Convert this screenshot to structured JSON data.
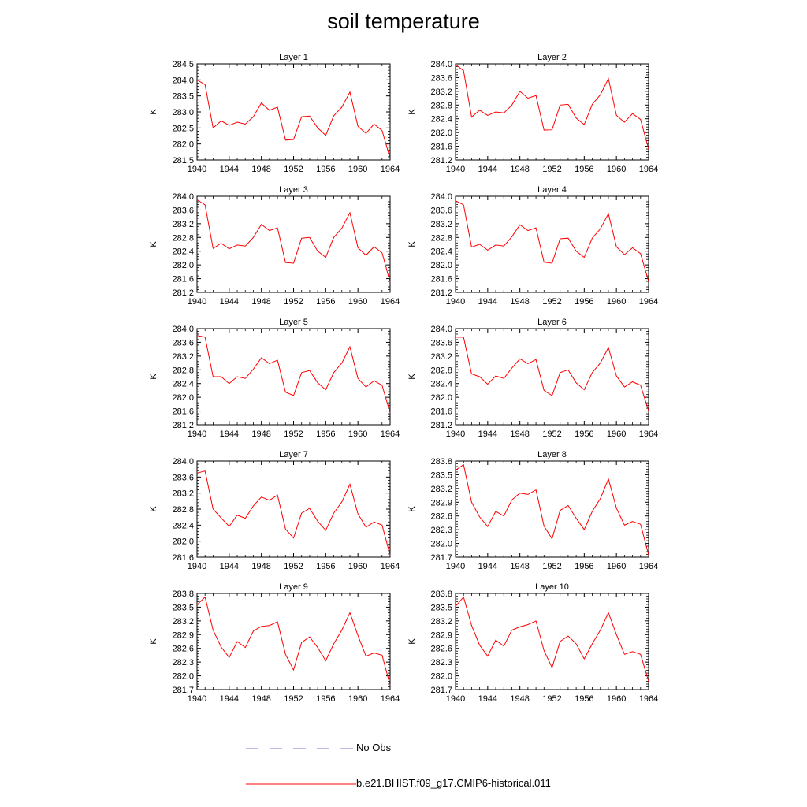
{
  "title": "soil temperature",
  "colors": {
    "model": "#ff0000",
    "obs": "#7777cc",
    "axis": "#000000"
  },
  "legend": {
    "obs_label": "No Obs",
    "model_label": "b.e21.BHIST.f09_g17.CMIP6-historical.011"
  },
  "chart_data": [
    {
      "type": "line",
      "title": "Layer 1",
      "ylabel": "K",
      "xlim": [
        1940,
        1964
      ],
      "ylim": [
        281.5,
        284.5
      ],
      "xticks": [
        1940,
        1944,
        1948,
        1952,
        1956,
        1960,
        1964
      ],
      "yticks": [
        281.5,
        282.0,
        282.5,
        283.0,
        283.5,
        284.0,
        284.5
      ],
      "ytick_labels": [
        "281.5",
        "282.0",
        "282.5",
        "283.0",
        "283.5",
        "284.0",
        "284.5"
      ],
      "x": [
        1940,
        1941,
        1942,
        1943,
        1944,
        1945,
        1946,
        1947,
        1948,
        1949,
        1950,
        1951,
        1952,
        1953,
        1954,
        1955,
        1956,
        1957,
        1958,
        1959,
        1960,
        1961,
        1962,
        1963,
        1964
      ],
      "series": [
        {
          "name": "b.e21.BHIST.f09_g17.CMIP6-historical.011",
          "values": [
            284.0,
            283.85,
            282.5,
            282.72,
            282.58,
            282.68,
            282.62,
            282.85,
            283.28,
            283.05,
            283.15,
            282.12,
            282.14,
            282.85,
            282.87,
            282.5,
            282.27,
            282.88,
            283.15,
            283.62,
            282.55,
            282.33,
            282.62,
            282.42,
            281.55
          ]
        }
      ]
    },
    {
      "type": "line",
      "title": "Layer 2",
      "ylabel": "K",
      "xlim": [
        1940,
        1964
      ],
      "ylim": [
        281.2,
        284.0
      ],
      "xticks": [
        1940,
        1944,
        1948,
        1952,
        1956,
        1960,
        1964
      ],
      "yticks": [
        281.2,
        281.6,
        282.0,
        282.4,
        282.8,
        283.2,
        283.6,
        284.0
      ],
      "ytick_labels": [
        "281.2",
        "281.6",
        "282.0",
        "282.4",
        "282.8",
        "283.2",
        "283.6",
        "284.0"
      ],
      "x": [
        1940,
        1941,
        1942,
        1943,
        1944,
        1945,
        1946,
        1947,
        1948,
        1949,
        1950,
        1951,
        1952,
        1953,
        1954,
        1955,
        1956,
        1957,
        1958,
        1959,
        1960,
        1961,
        1962,
        1963,
        1964
      ],
      "series": [
        {
          "name": "b.e21.BHIST.f09_g17.CMIP6-historical.011",
          "values": [
            283.98,
            283.8,
            282.45,
            282.65,
            282.5,
            282.6,
            282.57,
            282.8,
            283.2,
            283.0,
            283.08,
            282.07,
            282.08,
            282.8,
            282.82,
            282.42,
            282.23,
            282.82,
            283.1,
            283.57,
            282.5,
            282.3,
            282.55,
            282.38,
            281.52
          ]
        }
      ]
    },
    {
      "type": "line",
      "title": "Layer 3",
      "ylabel": "K",
      "xlim": [
        1940,
        1964
      ],
      "ylim": [
        281.2,
        284.0
      ],
      "xticks": [
        1940,
        1944,
        1948,
        1952,
        1956,
        1960,
        1964
      ],
      "yticks": [
        281.2,
        281.6,
        282.0,
        282.4,
        282.8,
        283.2,
        283.6,
        284.0
      ],
      "ytick_labels": [
        "281.2",
        "281.6",
        "282.0",
        "282.4",
        "282.8",
        "283.2",
        "283.6",
        "284.0"
      ],
      "x": [
        1940,
        1941,
        1942,
        1943,
        1944,
        1945,
        1946,
        1947,
        1948,
        1949,
        1950,
        1951,
        1952,
        1953,
        1954,
        1955,
        1956,
        1957,
        1958,
        1959,
        1960,
        1961,
        1962,
        1963,
        1964
      ],
      "series": [
        {
          "name": "b.e21.BHIST.f09_g17.CMIP6-historical.011",
          "values": [
            283.9,
            283.75,
            282.48,
            282.63,
            282.47,
            282.58,
            282.55,
            282.8,
            283.18,
            283.0,
            283.08,
            282.07,
            282.05,
            282.78,
            282.8,
            282.4,
            282.22,
            282.8,
            283.07,
            283.52,
            282.5,
            282.28,
            282.53,
            282.35,
            281.5
          ]
        }
      ]
    },
    {
      "type": "line",
      "title": "Layer 4",
      "ylabel": "K",
      "xlim": [
        1940,
        1964
      ],
      "ylim": [
        281.2,
        284.0
      ],
      "xticks": [
        1940,
        1944,
        1948,
        1952,
        1956,
        1960,
        1964
      ],
      "yticks": [
        281.2,
        281.6,
        282.0,
        282.4,
        282.8,
        283.2,
        283.6,
        284.0
      ],
      "ytick_labels": [
        "281.2",
        "281.6",
        "282.0",
        "282.4",
        "282.8",
        "283.2",
        "283.6",
        "284.0"
      ],
      "x": [
        1940,
        1941,
        1942,
        1943,
        1944,
        1945,
        1946,
        1947,
        1948,
        1949,
        1950,
        1951,
        1952,
        1953,
        1954,
        1955,
        1956,
        1957,
        1958,
        1959,
        1960,
        1961,
        1962,
        1963,
        1964
      ],
      "series": [
        {
          "name": "b.e21.BHIST.f09_g17.CMIP6-historical.011",
          "values": [
            283.87,
            283.75,
            282.52,
            282.6,
            282.43,
            282.58,
            282.55,
            282.82,
            283.17,
            283.0,
            283.08,
            282.08,
            282.05,
            282.76,
            282.78,
            282.4,
            282.22,
            282.78,
            283.05,
            283.49,
            282.53,
            282.3,
            282.5,
            282.33,
            281.52
          ]
        }
      ]
    },
    {
      "type": "line",
      "title": "Layer 5",
      "ylabel": "K",
      "xlim": [
        1940,
        1964
      ],
      "ylim": [
        281.2,
        284.0
      ],
      "xticks": [
        1940,
        1944,
        1948,
        1952,
        1956,
        1960,
        1964
      ],
      "yticks": [
        281.2,
        281.6,
        282.0,
        282.4,
        282.8,
        283.2,
        283.6,
        284.0
      ],
      "ytick_labels": [
        "281.2",
        "281.6",
        "282.0",
        "282.4",
        "282.8",
        "283.2",
        "283.6",
        "284.0"
      ],
      "x": [
        1940,
        1941,
        1942,
        1943,
        1944,
        1945,
        1946,
        1947,
        1948,
        1949,
        1950,
        1951,
        1952,
        1953,
        1954,
        1955,
        1956,
        1957,
        1958,
        1959,
        1960,
        1961,
        1962,
        1963,
        1964
      ],
      "series": [
        {
          "name": "b.e21.BHIST.f09_g17.CMIP6-historical.011",
          "values": [
            283.8,
            283.75,
            282.6,
            282.6,
            282.4,
            282.6,
            282.55,
            282.82,
            283.15,
            282.98,
            283.08,
            282.15,
            282.05,
            282.72,
            282.78,
            282.42,
            282.22,
            282.72,
            283.0,
            283.47,
            282.55,
            282.3,
            282.48,
            282.35,
            281.55
          ]
        }
      ]
    },
    {
      "type": "line",
      "title": "Layer 6",
      "ylabel": "K",
      "xlim": [
        1940,
        1964
      ],
      "ylim": [
        281.2,
        284.0
      ],
      "xticks": [
        1940,
        1944,
        1948,
        1952,
        1956,
        1960,
        1964
      ],
      "yticks": [
        281.2,
        281.6,
        282.0,
        282.4,
        282.8,
        283.2,
        283.6,
        284.0
      ],
      "ytick_labels": [
        "281.2",
        "281.6",
        "282.0",
        "282.4",
        "282.8",
        "283.2",
        "283.6",
        "284.0"
      ],
      "x": [
        1940,
        1941,
        1942,
        1943,
        1944,
        1945,
        1946,
        1947,
        1948,
        1949,
        1950,
        1951,
        1952,
        1953,
        1954,
        1955,
        1956,
        1957,
        1958,
        1959,
        1960,
        1961,
        1962,
        1963,
        1964
      ],
      "series": [
        {
          "name": "b.e21.BHIST.f09_g17.CMIP6-historical.011",
          "values": [
            283.75,
            283.75,
            282.68,
            282.6,
            282.38,
            282.62,
            282.55,
            282.85,
            283.12,
            282.98,
            283.1,
            282.2,
            282.05,
            282.72,
            282.8,
            282.42,
            282.22,
            282.72,
            283.0,
            283.45,
            282.62,
            282.3,
            282.45,
            282.35,
            281.6
          ]
        }
      ]
    },
    {
      "type": "line",
      "title": "Layer 7",
      "ylabel": "K",
      "xlim": [
        1940,
        1964
      ],
      "ylim": [
        281.6,
        284.0
      ],
      "xticks": [
        1940,
        1944,
        1948,
        1952,
        1956,
        1960,
        1964
      ],
      "yticks": [
        281.6,
        282.0,
        282.4,
        282.8,
        283.2,
        283.6,
        284.0
      ],
      "ytick_labels": [
        "281.6",
        "282.0",
        "282.4",
        "282.8",
        "283.2",
        "283.6",
        "284.0"
      ],
      "x": [
        1940,
        1941,
        1942,
        1943,
        1944,
        1945,
        1946,
        1947,
        1948,
        1949,
        1950,
        1951,
        1952,
        1953,
        1954,
        1955,
        1956,
        1957,
        1958,
        1959,
        1960,
        1961,
        1962,
        1963,
        1964
      ],
      "series": [
        {
          "name": "b.e21.BHIST.f09_g17.CMIP6-historical.011",
          "values": [
            283.7,
            283.75,
            282.8,
            282.58,
            282.37,
            282.65,
            282.57,
            282.88,
            283.1,
            283.02,
            283.15,
            282.3,
            282.08,
            282.7,
            282.82,
            282.5,
            282.27,
            282.7,
            282.98,
            283.42,
            282.68,
            282.35,
            282.48,
            282.4,
            281.65
          ]
        }
      ]
    },
    {
      "type": "line",
      "title": "Layer 8",
      "ylabel": "K",
      "xlim": [
        1940,
        1964
      ],
      "ylim": [
        281.7,
        283.8
      ],
      "xticks": [
        1940,
        1944,
        1948,
        1952,
        1956,
        1960,
        1964
      ],
      "yticks": [
        281.7,
        282.0,
        282.3,
        282.6,
        282.9,
        283.2,
        283.5,
        283.8
      ],
      "ytick_labels": [
        "281.7",
        "282.0",
        "282.3",
        "282.6",
        "282.9",
        "283.2",
        "283.5",
        "283.8"
      ],
      "x": [
        1940,
        1941,
        1942,
        1943,
        1944,
        1945,
        1946,
        1947,
        1948,
        1949,
        1950,
        1951,
        1952,
        1953,
        1954,
        1955,
        1956,
        1957,
        1958,
        1959,
        1960,
        1961,
        1962,
        1963,
        1964
      ],
      "series": [
        {
          "name": "b.e21.BHIST.f09_g17.CMIP6-historical.011",
          "values": [
            283.6,
            283.72,
            282.9,
            282.58,
            282.37,
            282.7,
            282.6,
            282.95,
            283.1,
            283.07,
            283.17,
            282.38,
            282.1,
            282.72,
            282.83,
            282.55,
            282.3,
            282.7,
            282.98,
            283.41,
            282.77,
            282.4,
            282.48,
            282.42,
            281.75
          ]
        }
      ]
    },
    {
      "type": "line",
      "title": "Layer 9",
      "ylabel": "K",
      "xlim": [
        1940,
        1964
      ],
      "ylim": [
        281.7,
        283.8
      ],
      "xticks": [
        1940,
        1944,
        1948,
        1952,
        1956,
        1960,
        1964
      ],
      "yticks": [
        281.7,
        282.0,
        282.3,
        282.6,
        282.9,
        283.2,
        283.5,
        283.8
      ],
      "ytick_labels": [
        "281.7",
        "282.0",
        "282.3",
        "282.6",
        "282.9",
        "283.2",
        "283.5",
        "283.8"
      ],
      "x": [
        1940,
        1941,
        1942,
        1943,
        1944,
        1945,
        1946,
        1947,
        1948,
        1949,
        1950,
        1951,
        1952,
        1953,
        1954,
        1955,
        1956,
        1957,
        1958,
        1959,
        1960,
        1961,
        1962,
        1963,
        1964
      ],
      "series": [
        {
          "name": "b.e21.BHIST.f09_g17.CMIP6-historical.011",
          "values": [
            283.55,
            283.72,
            283.0,
            282.63,
            282.4,
            282.75,
            282.62,
            282.98,
            283.08,
            283.1,
            283.18,
            282.47,
            282.13,
            282.73,
            282.85,
            282.62,
            282.33,
            282.7,
            283.0,
            283.38,
            282.88,
            282.43,
            282.5,
            282.45,
            281.8
          ]
        }
      ]
    },
    {
      "type": "line",
      "title": "Layer 10",
      "ylabel": "K",
      "xlim": [
        1940,
        1964
      ],
      "ylim": [
        281.7,
        283.8
      ],
      "xticks": [
        1940,
        1944,
        1948,
        1952,
        1956,
        1960,
        1964
      ],
      "yticks": [
        281.7,
        282.0,
        282.3,
        282.6,
        282.9,
        283.2,
        283.5,
        283.8
      ],
      "ytick_labels": [
        "281.7",
        "282.0",
        "282.3",
        "282.6",
        "282.9",
        "283.2",
        "283.5",
        "283.8"
      ],
      "x": [
        1940,
        1941,
        1942,
        1943,
        1944,
        1945,
        1946,
        1947,
        1948,
        1949,
        1950,
        1951,
        1952,
        1953,
        1954,
        1955,
        1956,
        1957,
        1958,
        1959,
        1960,
        1961,
        1962,
        1963,
        1964
      ],
      "series": [
        {
          "name": "b.e21.BHIST.f09_g17.CMIP6-historical.011",
          "values": [
            283.52,
            283.72,
            283.1,
            282.67,
            282.43,
            282.78,
            282.65,
            283.0,
            283.07,
            283.12,
            283.2,
            282.55,
            282.18,
            282.75,
            282.87,
            282.7,
            282.37,
            282.7,
            283.0,
            283.38,
            282.9,
            282.47,
            282.53,
            282.47,
            281.88
          ]
        }
      ]
    }
  ]
}
